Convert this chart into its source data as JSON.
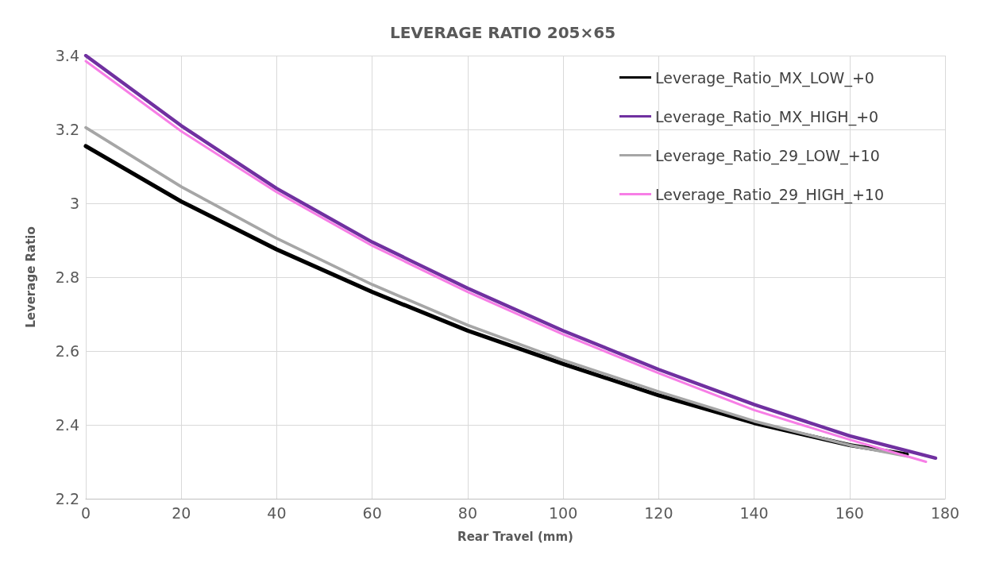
{
  "chart_data": {
    "type": "line",
    "title": "LEVERAGE RATIO 205×65",
    "xlabel": "Rear Travel (mm)",
    "ylabel": "Leverage Ratio",
    "xlim": [
      0,
      180
    ],
    "xticks": [
      0,
      20,
      40,
      60,
      80,
      100,
      120,
      140,
      160,
      180
    ],
    "ylim": [
      2.2,
      3.4
    ],
    "yticks": [
      2.2,
      2.4,
      2.6,
      2.8,
      3,
      3.2,
      3.4
    ],
    "grid": true,
    "legend": "top right",
    "marker": "none",
    "line_style": "solid",
    "series": [
      {
        "name": "Leverage_Ratio_MX_LOW_+0",
        "color": "#000000",
        "x": [
          0,
          20,
          40,
          60,
          80,
          100,
          120,
          140,
          160,
          172
        ],
        "values": [
          3.155,
          3.005,
          2.875,
          2.76,
          2.655,
          2.565,
          2.48,
          2.405,
          2.345,
          2.32
        ]
      },
      {
        "name": "Leverage_Ratio_MX_HIGH_+0",
        "color": "#7030a0",
        "x": [
          0,
          20,
          40,
          60,
          80,
          100,
          120,
          140,
          160,
          178
        ],
        "values": [
          3.4,
          3.21,
          3.04,
          2.895,
          2.77,
          2.655,
          2.55,
          2.455,
          2.37,
          2.31
        ]
      },
      {
        "name": "Leverage_Ratio_29_LOW_+10",
        "color": "#a6a6a6",
        "x": [
          0,
          20,
          40,
          60,
          80,
          100,
          120,
          140,
          160,
          172
        ],
        "values": [
          3.205,
          3.045,
          2.905,
          2.78,
          2.67,
          2.575,
          2.49,
          2.41,
          2.345,
          2.315
        ]
      },
      {
        "name": "Leverage_Ratio_29_HIGH_+10",
        "color": "#f77ee6",
        "x": [
          0,
          20,
          40,
          60,
          80,
          100,
          120,
          140,
          160,
          176
        ],
        "values": [
          3.385,
          3.195,
          3.03,
          2.885,
          2.76,
          2.645,
          2.54,
          2.44,
          2.36,
          2.3
        ]
      }
    ]
  }
}
